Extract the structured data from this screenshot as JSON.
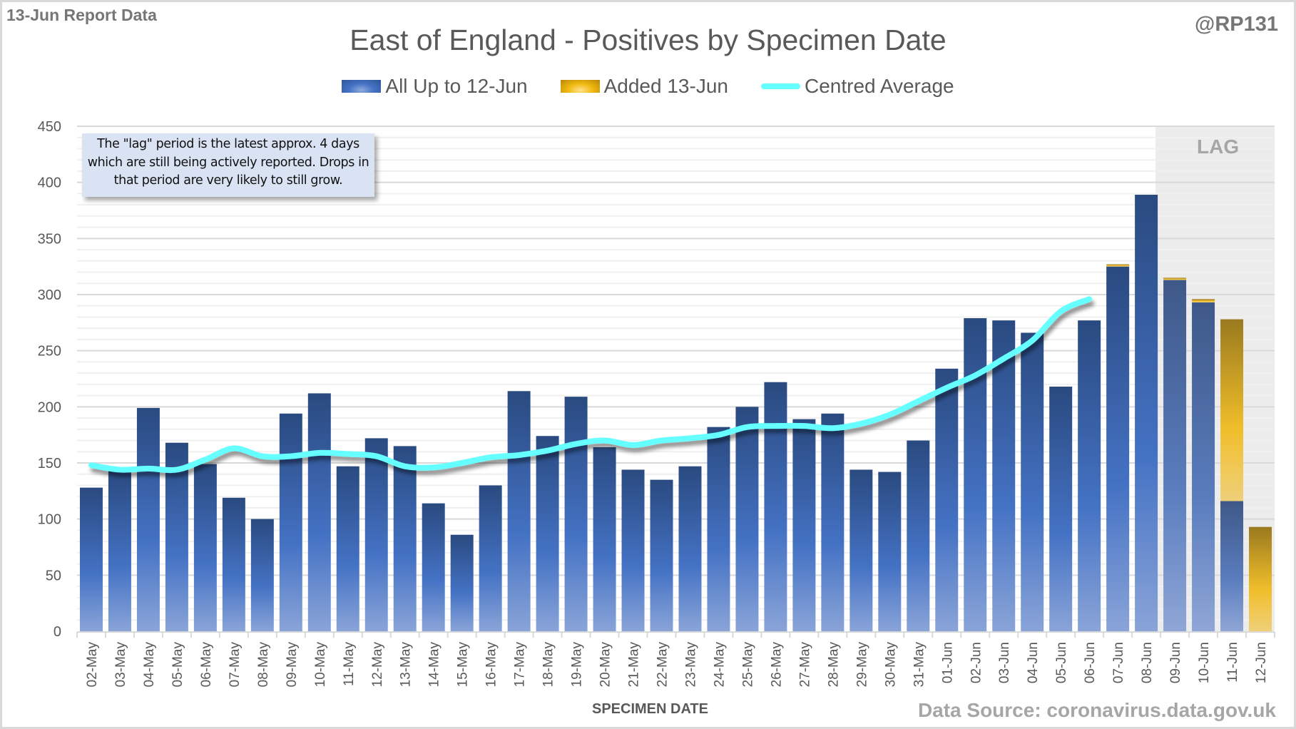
{
  "header": {
    "report_label": "13-Jun Report Data",
    "author": "@RP131",
    "data_source": "Data Source: coronavirus.data.gov.uk"
  },
  "note": "The \"lag\" period is the latest approx. 4 days which are still being actively reported. Drops in that period are very likely to still grow.",
  "lag_label": "LAG",
  "colors": {
    "all_up_to": "#4472c4",
    "added": "#f0b90f",
    "average": "#66ffff",
    "lag_band": "#ececec"
  },
  "chart_data": {
    "type": "bar",
    "stacked": true,
    "title": "East of England - Positives by Specimen Date",
    "xlabel": "SPECIMEN DATE",
    "ylabel": "",
    "ylim": [
      0,
      450
    ],
    "yticks": [
      0,
      50,
      100,
      150,
      200,
      250,
      300,
      350,
      400,
      450
    ],
    "grid": true,
    "legend_position": "top",
    "lag_categories": [
      "09-Jun",
      "10-Jun",
      "11-Jun",
      "12-Jun"
    ],
    "categories": [
      "02-May",
      "03-May",
      "04-May",
      "05-May",
      "06-May",
      "07-May",
      "08-May",
      "09-May",
      "10-May",
      "11-May",
      "12-May",
      "13-May",
      "14-May",
      "15-May",
      "16-May",
      "17-May",
      "18-May",
      "19-May",
      "20-May",
      "21-May",
      "22-May",
      "23-May",
      "24-May",
      "25-May",
      "26-May",
      "27-May",
      "28-May",
      "29-May",
      "30-May",
      "31-May",
      "01-Jun",
      "02-Jun",
      "03-Jun",
      "04-Jun",
      "05-Jun",
      "06-Jun",
      "07-Jun",
      "08-Jun",
      "09-Jun",
      "10-Jun",
      "11-Jun",
      "12-Jun"
    ],
    "series": [
      {
        "name": "All Up to 12-Jun",
        "kind": "bar",
        "values": [
          128,
          143,
          199,
          168,
          149,
          119,
          100,
          194,
          212,
          147,
          172,
          165,
          114,
          86,
          130,
          214,
          174,
          209,
          164,
          144,
          135,
          147,
          182,
          200,
          222,
          189,
          194,
          144,
          142,
          170,
          234,
          279,
          277,
          266,
          218,
          277,
          325,
          389,
          313,
          293,
          116,
          0
        ]
      },
      {
        "name": "Added 13-Jun",
        "kind": "bar",
        "values": [
          0,
          0,
          0,
          0,
          0,
          0,
          0,
          0,
          0,
          0,
          0,
          0,
          0,
          0,
          0,
          0,
          0,
          0,
          0,
          0,
          0,
          0,
          0,
          0,
          0,
          0,
          0,
          0,
          0,
          0,
          0,
          0,
          0,
          0,
          0,
          0,
          2,
          0,
          2,
          3,
          162,
          93
        ]
      },
      {
        "name": "Centred Average",
        "kind": "line",
        "values": [
          148,
          144,
          145,
          144,
          153,
          163,
          156,
          156,
          159,
          158,
          156,
          147,
          146,
          150,
          155,
          157,
          161,
          167,
          170,
          166,
          170,
          172,
          175,
          182,
          183,
          183,
          181,
          185,
          193,
          205,
          217,
          228,
          243,
          259,
          285,
          296,
          null,
          null,
          null,
          null,
          null,
          null
        ]
      }
    ]
  }
}
